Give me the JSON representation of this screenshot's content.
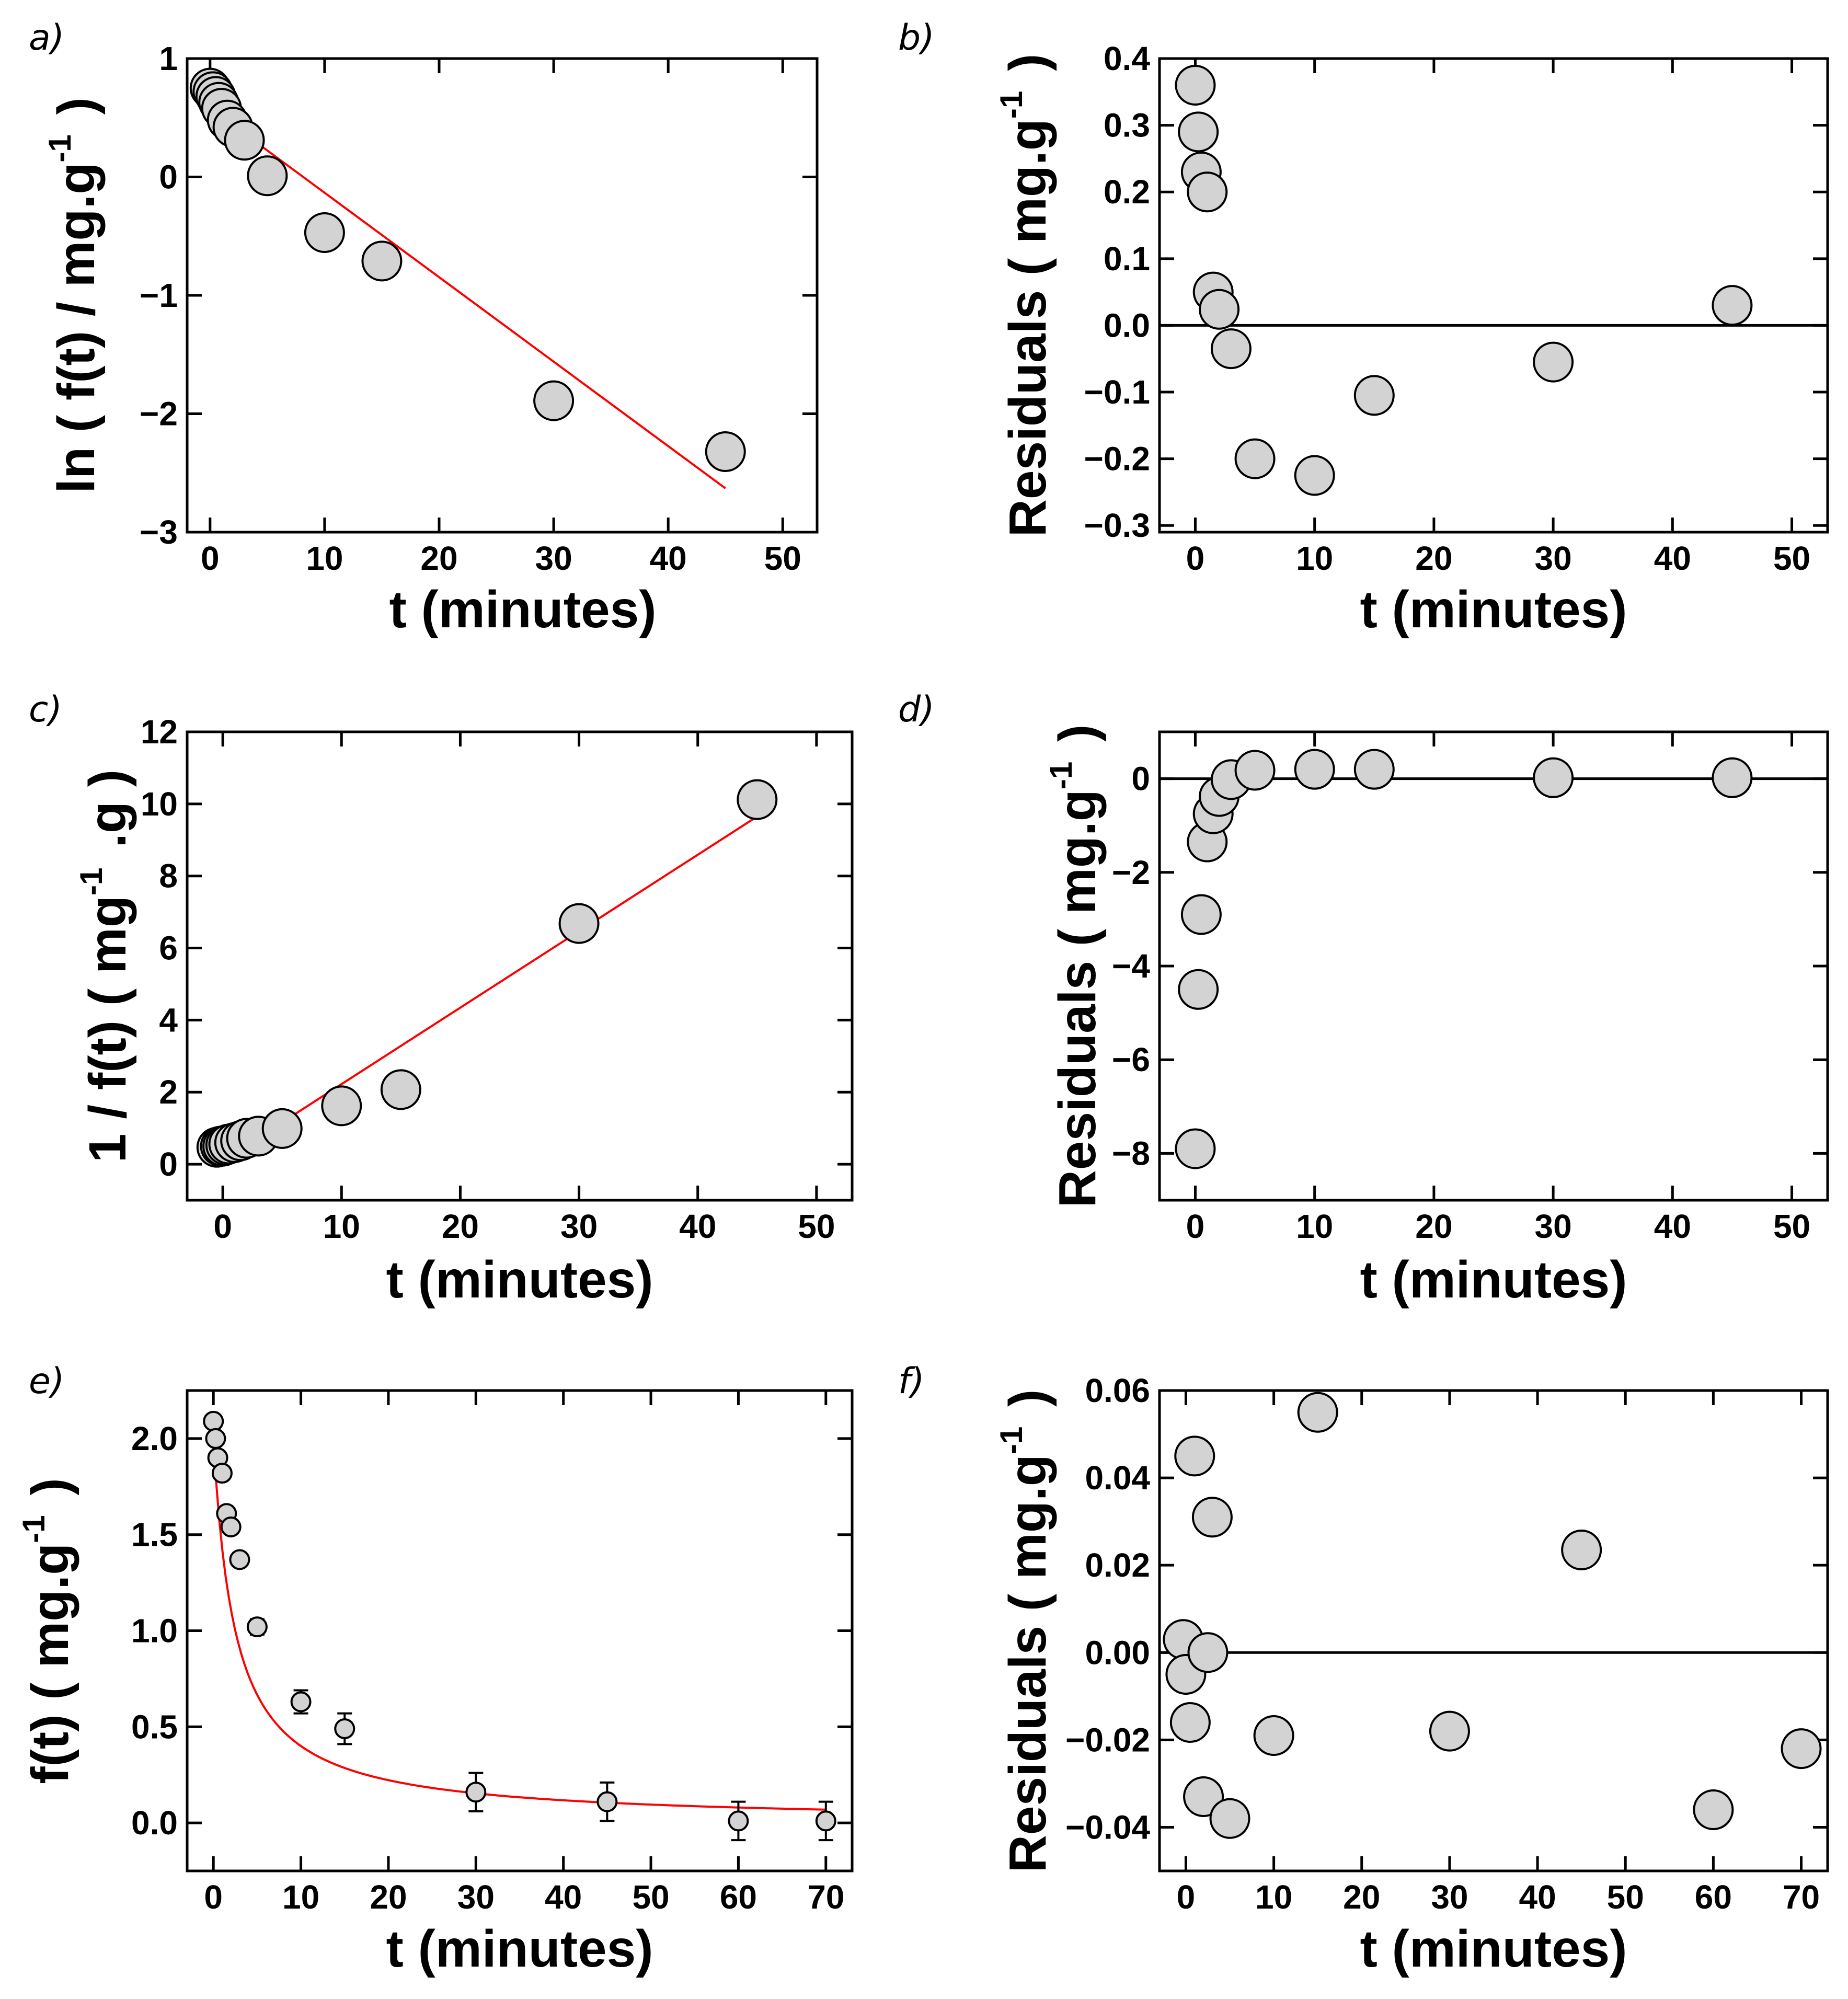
{
  "chart_data": [
    {
      "panel": "a)",
      "type": "scatter",
      "xlabel": "t (minutes)",
      "ylabel": "ln ( f(t) / mg.g",
      "ylabel_sup": "-1",
      "ylabel_end": ")",
      "xlim": [
        -2,
        53
      ],
      "ylim": [
        -3,
        1
      ],
      "xticks": [
        0,
        10,
        20,
        30,
        40,
        50
      ],
      "yticks": [
        -3,
        -2,
        -1,
        0,
        1
      ],
      "xtick_labels": [
        "0",
        "10",
        "20",
        "30",
        "40",
        "50"
      ],
      "ytick_labels": [
        "−3",
        "−2",
        "−1",
        "0",
        "1"
      ],
      "series": [
        {
          "name": "data",
          "x": [
            0,
            0.25,
            0.5,
            0.75,
            1,
            1.5,
            2,
            3,
            5,
            10,
            15,
            30,
            45
          ],
          "y": [
            0.75,
            0.72,
            0.68,
            0.63,
            0.58,
            0.48,
            0.42,
            0.31,
            0.01,
            -0.47,
            -0.71,
            -1.89,
            -2.32
          ]
        },
        {
          "name": "fit",
          "x": [
            0,
            45
          ],
          "y": [
            0.58,
            -2.63
          ],
          "style": "line",
          "color": "#ff0000"
        }
      ],
      "zero_line": false
    },
    {
      "panel": "b)",
      "type": "scatter",
      "xlabel": "t (minutes)",
      "ylabel": "Residuals ( mg.g",
      "ylabel_sup": "-1",
      "ylabel_end": ")",
      "xlim": [
        -3,
        53
      ],
      "ylim": [
        -0.31,
        0.4
      ],
      "xticks": [
        0,
        10,
        20,
        30,
        40,
        50
      ],
      "yticks": [
        -0.3,
        -0.2,
        -0.1,
        0.0,
        0.1,
        0.2,
        0.3,
        0.4
      ],
      "xtick_labels": [
        "0",
        "10",
        "20",
        "30",
        "40",
        "50"
      ],
      "ytick_labels": [
        "−0.3",
        "−0.2",
        "−0.1",
        "0.0",
        "0.1",
        "0.2",
        "0.3",
        "0.4"
      ],
      "series": [
        {
          "name": "residuals",
          "x": [
            0,
            0.25,
            0.5,
            1,
            1.5,
            2,
            3,
            5,
            10,
            15,
            30,
            45
          ],
          "y": [
            0.36,
            0.29,
            0.23,
            0.2,
            0.05,
            0.024,
            -0.035,
            -0.2,
            -0.225,
            -0.105,
            -0.055,
            0.03
          ]
        }
      ],
      "zero_line": true
    },
    {
      "panel": "c)",
      "type": "scatter",
      "xlabel": "t (minutes)",
      "ylabel": "1 / f(t)  ( mg",
      "ylabel_sup": "-1",
      "ylabel_end": ".g )",
      "xlim": [
        -3,
        53
      ],
      "ylim": [
        -1,
        12
      ],
      "xticks": [
        0,
        10,
        20,
        30,
        40,
        50
      ],
      "yticks": [
        0,
        2,
        4,
        6,
        8,
        10,
        12
      ],
      "xtick_labels": [
        "0",
        "10",
        "20",
        "30",
        "40",
        "50"
      ],
      "ytick_labels": [
        "0",
        "2",
        "4",
        "6",
        "8",
        "10",
        "12"
      ],
      "series": [
        {
          "name": "data",
          "x": [
            -0.5,
            -0.2,
            0,
            0.25,
            0.5,
            1,
            1.5,
            2,
            3,
            5,
            10,
            15,
            30,
            45
          ],
          "y": [
            0.47,
            0.5,
            0.5,
            0.53,
            0.56,
            0.6,
            0.65,
            0.72,
            0.78,
            0.99,
            1.62,
            2.07,
            6.68,
            10.12
          ]
        },
        {
          "name": "fit",
          "x": [
            0,
            45
          ],
          "y": [
            0.1,
            9.65
          ],
          "style": "line",
          "color": "#ff0000"
        }
      ],
      "zero_line": false
    },
    {
      "panel": "d)",
      "type": "scatter",
      "xlabel": "t (minutes)",
      "ylabel": "Residuals ( mg.g",
      "ylabel_sup": "-1",
      "ylabel_end": ")",
      "xlim": [
        -3,
        53
      ],
      "ylim": [
        -9,
        1
      ],
      "xticks": [
        0,
        10,
        20,
        30,
        40,
        50
      ],
      "yticks": [
        -8,
        -6,
        -4,
        -2,
        0
      ],
      "xtick_labels": [
        "0",
        "10",
        "20",
        "30",
        "40",
        "50"
      ],
      "ytick_labels": [
        "−8",
        "−6",
        "−4",
        "−2",
        "0"
      ],
      "series": [
        {
          "name": "residuals",
          "x": [
            0,
            0.25,
            0.5,
            1,
            1.5,
            2,
            3,
            5,
            10,
            15,
            30,
            45
          ],
          "y": [
            -7.9,
            -4.5,
            -2.9,
            -1.35,
            -0.75,
            -0.38,
            -0.02,
            0.18,
            0.2,
            0.2,
            0.02,
            0.02
          ]
        }
      ],
      "zero_line": true
    },
    {
      "panel": "e)",
      "type": "scatter",
      "xlabel": "t (minutes)",
      "ylabel": "f(t) ( mg.g",
      "ylabel_sup": "-1",
      "ylabel_end": ")",
      "xlim": [
        -3,
        73
      ],
      "ylim": [
        -0.25,
        2.25
      ],
      "xticks": [
        0,
        10,
        20,
        30,
        40,
        50,
        60,
        70
      ],
      "yticks": [
        0.0,
        0.5,
        1.0,
        1.5,
        2.0
      ],
      "xtick_labels": [
        "0",
        "10",
        "20",
        "30",
        "40",
        "50",
        "60",
        "70"
      ],
      "ytick_labels": [
        "0.0",
        "0.5",
        "1.0",
        "1.5",
        "2.0"
      ],
      "series": [
        {
          "name": "data",
          "x": [
            0,
            0.25,
            0.5,
            1,
            1.5,
            2,
            3,
            5,
            10,
            15,
            30,
            45,
            60,
            70
          ],
          "y": [
            2.09,
            2.0,
            1.9,
            1.82,
            1.61,
            1.54,
            1.37,
            1.02,
            0.63,
            0.49,
            0.16,
            0.11,
            0.01,
            0.01
          ],
          "err": [
            0,
            0,
            0,
            0,
            0,
            0,
            0,
            0.04,
            0.06,
            0.08,
            0.1,
            0.1,
            0.1,
            0.1
          ]
        },
        {
          "name": "fit",
          "style": "curve",
          "model": "second_order",
          "C0": 2.0,
          "k": 0.2,
          "x_range": [
            0,
            70
          ],
          "color": "#ff0000"
        }
      ],
      "zero_line": false
    },
    {
      "panel": "f)",
      "type": "scatter",
      "xlabel": "t (minutes)",
      "ylabel": "Residuals ( mg.g",
      "ylabel_sup": "-1",
      "ylabel_end": ")",
      "xlim": [
        -3,
        73
      ],
      "ylim": [
        -0.05,
        0.06
      ],
      "xticks": [
        0,
        10,
        20,
        30,
        40,
        50,
        60,
        70
      ],
      "yticks": [
        -0.04,
        -0.02,
        0.0,
        0.02,
        0.04,
        0.06
      ],
      "xtick_labels": [
        "0",
        "10",
        "20",
        "30",
        "40",
        "50",
        "60",
        "70"
      ],
      "ytick_labels": [
        "−0.04",
        "−0.02",
        "0.00",
        "0.02",
        "0.04",
        "0.06"
      ],
      "series": [
        {
          "name": "residuals",
          "x": [
            -0.3,
            0,
            0.5,
            1,
            2,
            2.5,
            3,
            5,
            10,
            15,
            30,
            45,
            60,
            70
          ],
          "y": [
            0.003,
            -0.005,
            -0.016,
            0.045,
            -0.033,
            0.0,
            0.031,
            -0.038,
            -0.019,
            0.055,
            -0.018,
            0.0235,
            -0.036,
            -0.022
          ]
        }
      ],
      "zero_line": true
    }
  ]
}
